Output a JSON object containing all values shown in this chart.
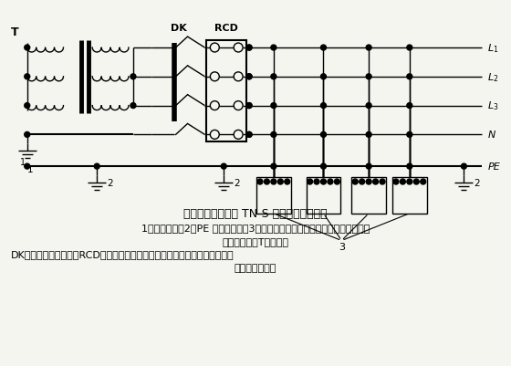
{
  "title": "专用变压器供电时 TN-S 接零保护系统示意",
  "caption_line1": "1－工作接地；2－PE 线重复接地；3－电气设备金属外壳（正常不带电的外露可",
  "caption_line2": "导电部分）；T－变压器",
  "caption_line3": "DK－总电源隔离开关；RCD－总漏电保护器（兼有短路、过载、漏电保护功能",
  "caption_line4": "的漏电断路器）",
  "bg_color": "#f5f5f0",
  "line_color": "#000000",
  "label_T": "T",
  "label_DK": "DK",
  "label_RCD": "RCD",
  "label_L1": "$L_1$",
  "label_L2": "$L_2$",
  "label_L3": "$L_3$",
  "label_N": "N",
  "label_PE": "PE",
  "label_1": "1",
  "label_2": "2",
  "label_3": "3"
}
